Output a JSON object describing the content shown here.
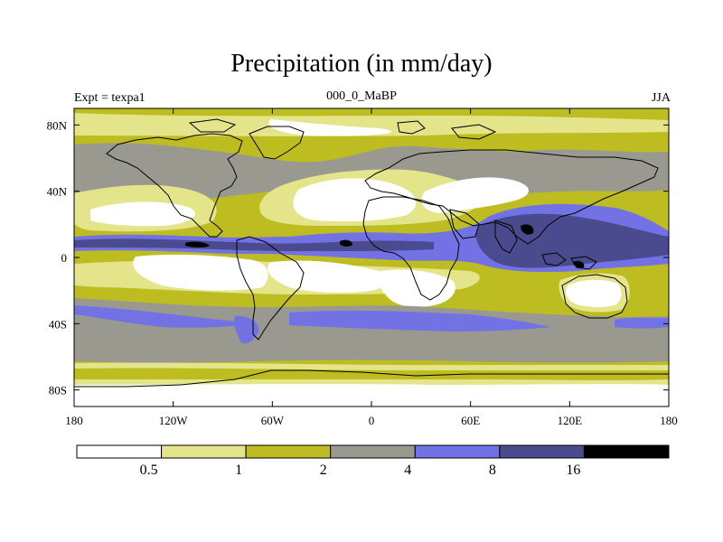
{
  "title": "Precipitation (in mm/day)",
  "subtitle_left": "Expt = texpa1",
  "subtitle_center": "000_0_MaBP",
  "subtitle_right": "JJA",
  "axes": {
    "y_ticks": [
      {
        "value": 80,
        "label": "80N"
      },
      {
        "value": 40,
        "label": "40N"
      },
      {
        "value": 0,
        "label": "0"
      },
      {
        "value": -40,
        "label": "40S"
      },
      {
        "value": -80,
        "label": "80S"
      }
    ],
    "x_ticks": [
      {
        "value": -180,
        "label": "180"
      },
      {
        "value": -120,
        "label": "120W"
      },
      {
        "value": -60,
        "label": "60W"
      },
      {
        "value": 0,
        "label": "0"
      },
      {
        "value": 60,
        "label": "60E"
      },
      {
        "value": 120,
        "label": "120E"
      },
      {
        "value": 180,
        "label": "180"
      }
    ],
    "lon_range": [
      -180,
      180
    ],
    "lat_range": [
      -90,
      90
    ]
  },
  "colorbar": {
    "levels": [
      "0.5",
      "1",
      "2",
      "4",
      "8",
      "16"
    ],
    "colors": [
      "#ffffff",
      "#e4e48a",
      "#bdbd22",
      "#999990",
      "#7272e4",
      "#4a4a8e",
      "#000000"
    ]
  },
  "colors": {
    "lt05": "#ffffff",
    "b05_1": "#e4e48a",
    "b1_2": "#bdbd22",
    "b2_4": "#999990",
    "b4_8": "#7272e4",
    "b8_16": "#4a4a8e",
    "gt16": "#000000"
  }
}
